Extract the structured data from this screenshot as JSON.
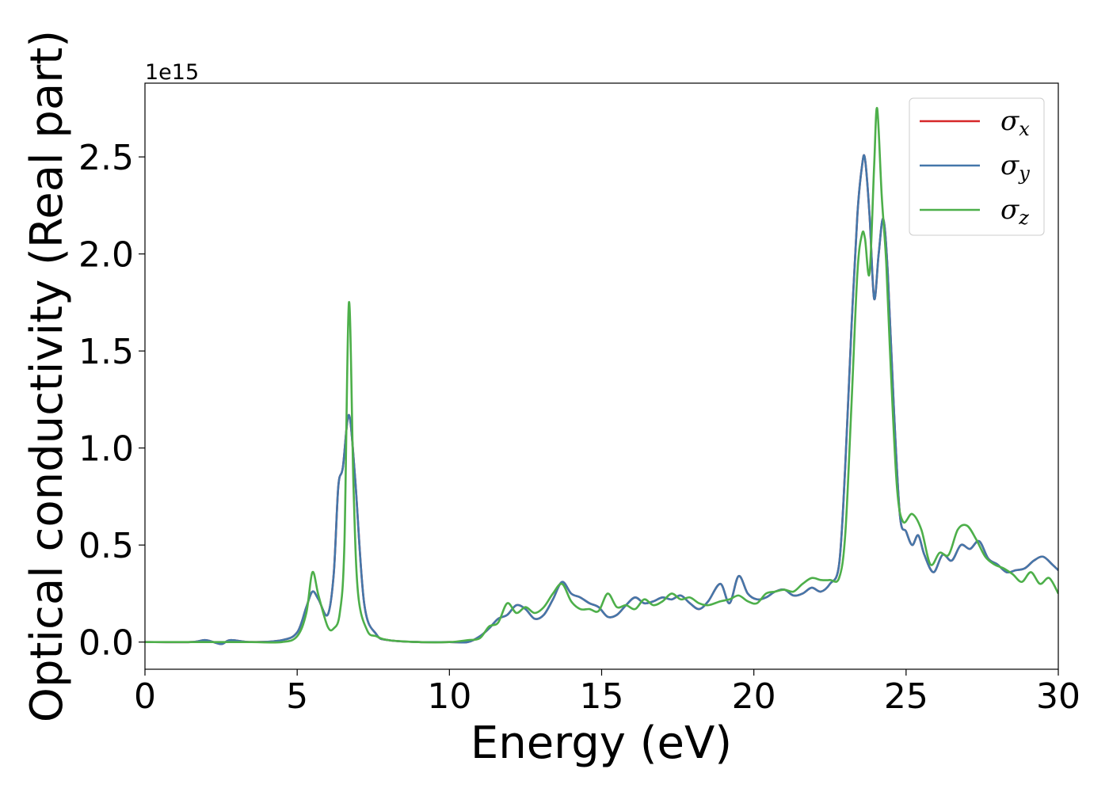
{
  "chart_data": {
    "type": "line",
    "xlabel": "Energy (eV)",
    "ylabel": "Optical conductivity (Real part)",
    "y_offset_label": "1e15",
    "xlim": [
      0,
      30
    ],
    "ylim": [
      -0.14,
      2.88
    ],
    "xticks": [
      {
        "value": 0,
        "label": "0"
      },
      {
        "value": 5,
        "label": "5"
      },
      {
        "value": 10,
        "label": "10"
      },
      {
        "value": 15,
        "label": "15"
      },
      {
        "value": 20,
        "label": "20"
      },
      {
        "value": 25,
        "label": "25"
      },
      {
        "value": 30,
        "label": "30"
      }
    ],
    "yticks": [
      {
        "value": 0.0,
        "label": "0.0"
      },
      {
        "value": 0.5,
        "label": "0.5"
      },
      {
        "value": 1.0,
        "label": "1.0"
      },
      {
        "value": 1.5,
        "label": "1.5"
      },
      {
        "value": 2.0,
        "label": "2.0"
      },
      {
        "value": 2.5,
        "label": "2.5"
      }
    ],
    "grid": false,
    "legend_position": "top-right",
    "series": [
      {
        "name": "σx",
        "symbol": "σ",
        "subscript": "x",
        "color": "#d62728",
        "x": [
          0,
          1.5,
          2.0,
          2.5,
          2.8,
          3.5,
          4.5,
          5.0,
          5.3,
          5.5,
          5.7,
          6.0,
          6.2,
          6.35,
          6.5,
          6.7,
          6.9,
          7.2,
          7.6,
          8.0,
          9.0,
          10.0,
          10.6,
          11.0,
          11.3,
          11.6,
          11.9,
          12.2,
          12.5,
          12.8,
          13.1,
          13.4,
          13.7,
          14.0,
          14.3,
          14.6,
          14.9,
          15.2,
          15.5,
          15.8,
          16.1,
          16.4,
          16.7,
          17.0,
          17.3,
          17.6,
          17.9,
          18.2,
          18.5,
          18.9,
          19.2,
          19.5,
          19.8,
          20.1,
          20.4,
          20.7,
          21.0,
          21.3,
          21.6,
          21.9,
          22.2,
          22.5,
          22.8,
          23.0,
          23.2,
          23.4,
          23.55,
          23.65,
          23.8,
          23.95,
          24.1,
          24.25,
          24.4,
          24.6,
          24.8,
          25.0,
          25.2,
          25.4,
          25.6,
          25.9,
          26.2,
          26.5,
          26.8,
          27.1,
          27.4,
          27.7,
          28.0,
          28.3,
          28.6,
          28.9,
          29.2,
          29.5,
          29.8,
          30.0
        ],
        "values": [
          0,
          0,
          0.01,
          -0.01,
          0.01,
          0.0,
          0.01,
          0.05,
          0.18,
          0.26,
          0.22,
          0.14,
          0.35,
          0.8,
          0.9,
          1.17,
          0.85,
          0.2,
          0.04,
          0.01,
          0.0,
          0.0,
          0.0,
          0.03,
          0.07,
          0.12,
          0.14,
          0.19,
          0.17,
          0.12,
          0.14,
          0.22,
          0.31,
          0.25,
          0.23,
          0.2,
          0.18,
          0.13,
          0.14,
          0.19,
          0.23,
          0.2,
          0.21,
          0.23,
          0.22,
          0.24,
          0.2,
          0.17,
          0.21,
          0.3,
          0.2,
          0.34,
          0.25,
          0.22,
          0.23,
          0.26,
          0.27,
          0.24,
          0.25,
          0.28,
          0.26,
          0.3,
          0.4,
          0.9,
          1.6,
          2.2,
          2.45,
          2.49,
          2.2,
          1.77,
          2.0,
          2.18,
          1.9,
          1.2,
          0.65,
          0.57,
          0.5,
          0.55,
          0.45,
          0.36,
          0.45,
          0.42,
          0.5,
          0.48,
          0.52,
          0.43,
          0.4,
          0.36,
          0.37,
          0.38,
          0.42,
          0.44,
          0.4,
          0.37
        ]
      },
      {
        "name": "σy",
        "symbol": "σ",
        "subscript": "y",
        "color": "#4477aa",
        "x": [
          0,
          1.5,
          2.0,
          2.5,
          2.8,
          3.5,
          4.5,
          5.0,
          5.3,
          5.5,
          5.7,
          6.0,
          6.2,
          6.35,
          6.5,
          6.7,
          6.9,
          7.2,
          7.6,
          8.0,
          9.0,
          10.0,
          10.6,
          11.0,
          11.3,
          11.6,
          11.9,
          12.2,
          12.5,
          12.8,
          13.1,
          13.4,
          13.7,
          14.0,
          14.3,
          14.6,
          14.9,
          15.2,
          15.5,
          15.8,
          16.1,
          16.4,
          16.7,
          17.0,
          17.3,
          17.6,
          17.9,
          18.2,
          18.5,
          18.9,
          19.2,
          19.5,
          19.8,
          20.1,
          20.4,
          20.7,
          21.0,
          21.3,
          21.6,
          21.9,
          22.2,
          22.5,
          22.8,
          23.0,
          23.2,
          23.4,
          23.55,
          23.65,
          23.8,
          23.95,
          24.1,
          24.25,
          24.4,
          24.6,
          24.8,
          25.0,
          25.2,
          25.4,
          25.6,
          25.9,
          26.2,
          26.5,
          26.8,
          27.1,
          27.4,
          27.7,
          28.0,
          28.3,
          28.6,
          28.9,
          29.2,
          29.5,
          29.8,
          30.0
        ],
        "values": [
          0,
          0,
          0.01,
          -0.01,
          0.01,
          0.0,
          0.01,
          0.05,
          0.18,
          0.26,
          0.22,
          0.14,
          0.35,
          0.8,
          0.9,
          1.17,
          0.85,
          0.2,
          0.04,
          0.01,
          0.0,
          0.0,
          0.0,
          0.03,
          0.07,
          0.12,
          0.14,
          0.19,
          0.17,
          0.12,
          0.14,
          0.22,
          0.31,
          0.25,
          0.23,
          0.2,
          0.18,
          0.13,
          0.14,
          0.19,
          0.23,
          0.2,
          0.21,
          0.23,
          0.22,
          0.24,
          0.2,
          0.17,
          0.21,
          0.3,
          0.2,
          0.34,
          0.25,
          0.22,
          0.23,
          0.26,
          0.27,
          0.24,
          0.25,
          0.28,
          0.26,
          0.3,
          0.4,
          0.9,
          1.6,
          2.2,
          2.45,
          2.49,
          2.2,
          1.77,
          2.0,
          2.18,
          1.9,
          1.2,
          0.65,
          0.57,
          0.5,
          0.55,
          0.45,
          0.36,
          0.45,
          0.42,
          0.5,
          0.48,
          0.52,
          0.43,
          0.4,
          0.36,
          0.37,
          0.38,
          0.42,
          0.44,
          0.4,
          0.37
        ]
      },
      {
        "name": "σz",
        "symbol": "σ",
        "subscript": "z",
        "color": "#4daf4a",
        "x": [
          0,
          1.5,
          2.0,
          2.5,
          2.8,
          3.5,
          4.5,
          5.0,
          5.3,
          5.5,
          5.7,
          6.0,
          6.2,
          6.4,
          6.55,
          6.7,
          6.85,
          7.0,
          7.3,
          7.6,
          8.0,
          9.0,
          10.0,
          10.6,
          11.0,
          11.3,
          11.6,
          11.9,
          12.2,
          12.5,
          12.8,
          13.1,
          13.4,
          13.7,
          14.0,
          14.3,
          14.6,
          14.9,
          15.2,
          15.5,
          15.8,
          16.1,
          16.4,
          16.7,
          17.0,
          17.3,
          17.6,
          17.9,
          18.2,
          18.5,
          18.9,
          19.2,
          19.5,
          19.8,
          20.1,
          20.4,
          20.7,
          21.0,
          21.3,
          21.6,
          21.9,
          22.2,
          22.5,
          22.8,
          23.0,
          23.2,
          23.4,
          23.55,
          23.65,
          23.8,
          23.95,
          24.05,
          24.2,
          24.35,
          24.5,
          24.7,
          24.9,
          25.2,
          25.5,
          25.8,
          26.1,
          26.4,
          26.7,
          27.0,
          27.3,
          27.6,
          27.9,
          28.2,
          28.5,
          28.8,
          29.1,
          29.4,
          29.7,
          30.0
        ],
        "values": [
          0,
          0,
          0.0,
          0.0,
          0.0,
          0.0,
          0.0,
          0.03,
          0.15,
          0.36,
          0.24,
          0.08,
          0.07,
          0.15,
          0.5,
          1.75,
          0.8,
          0.25,
          0.06,
          0.03,
          0.01,
          0.0,
          0.0,
          0.01,
          0.02,
          0.08,
          0.1,
          0.2,
          0.15,
          0.18,
          0.15,
          0.18,
          0.25,
          0.3,
          0.21,
          0.17,
          0.17,
          0.16,
          0.25,
          0.18,
          0.19,
          0.17,
          0.22,
          0.19,
          0.21,
          0.25,
          0.22,
          0.23,
          0.2,
          0.19,
          0.21,
          0.22,
          0.24,
          0.21,
          0.2,
          0.25,
          0.26,
          0.27,
          0.26,
          0.3,
          0.33,
          0.32,
          0.32,
          0.33,
          0.55,
          1.2,
          1.9,
          2.1,
          2.08,
          1.9,
          2.45,
          2.75,
          2.3,
          1.95,
          1.4,
          0.8,
          0.62,
          0.66,
          0.58,
          0.4,
          0.46,
          0.45,
          0.58,
          0.6,
          0.53,
          0.44,
          0.4,
          0.38,
          0.35,
          0.31,
          0.36,
          0.3,
          0.33,
          0.25
        ]
      }
    ]
  }
}
